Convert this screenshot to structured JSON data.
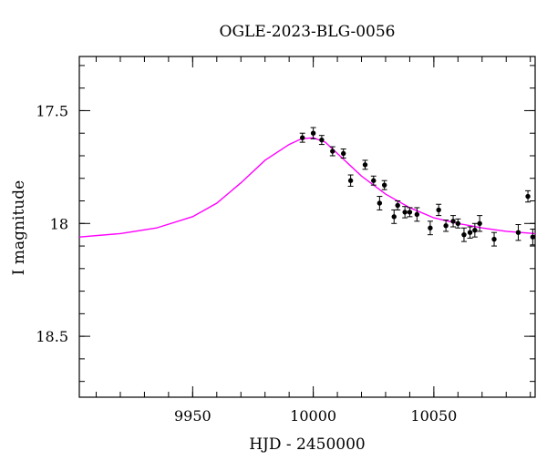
{
  "chart_data": {
    "type": "scatter",
    "title": "OGLE-2023-BLG-0056",
    "xlabel": "HJD - 2450000",
    "ylabel": "I magnitude",
    "xlim": [
      9903,
      10092
    ],
    "ylim": [
      18.77,
      17.26
    ],
    "y_inverted": true,
    "x_ticks": [
      9950,
      10000,
      10050
    ],
    "x_tick_labels": [
      "9950",
      "10000",
      "10050"
    ],
    "y_ticks": [
      17.5,
      18,
      18.5
    ],
    "y_tick_labels": [
      "17.5",
      "18",
      "18.5"
    ],
    "x_minor_step": 10,
    "y_minor_step": 0.1,
    "grid": false,
    "colors": {
      "model": "#ff00ff",
      "points": "#000000"
    },
    "series": [
      {
        "kind": "points_with_errors",
        "points": [
          {
            "x": 9995.5,
            "y": 17.62,
            "err": 0.02
          },
          {
            "x": 10000,
            "y": 17.6,
            "err": 0.025
          },
          {
            "x": 10003.5,
            "y": 17.63,
            "err": 0.02
          },
          {
            "x": 10008,
            "y": 17.68,
            "err": 0.02
          },
          {
            "x": 10012.5,
            "y": 17.69,
            "err": 0.02
          },
          {
            "x": 10015.5,
            "y": 17.81,
            "err": 0.025
          },
          {
            "x": 10021.5,
            "y": 17.74,
            "err": 0.02
          },
          {
            "x": 10025,
            "y": 17.81,
            "err": 0.02
          },
          {
            "x": 10027.5,
            "y": 17.91,
            "err": 0.03
          },
          {
            "x": 10029.5,
            "y": 17.83,
            "err": 0.02
          },
          {
            "x": 10033.5,
            "y": 17.97,
            "err": 0.03
          },
          {
            "x": 10035,
            "y": 17.92,
            "err": 0.02
          },
          {
            "x": 10038,
            "y": 17.95,
            "err": 0.025
          },
          {
            "x": 10040,
            "y": 17.95,
            "err": 0.02
          },
          {
            "x": 10043,
            "y": 17.96,
            "err": 0.03
          },
          {
            "x": 10048.5,
            "y": 18.02,
            "err": 0.03
          },
          {
            "x": 10052,
            "y": 17.94,
            "err": 0.025
          },
          {
            "x": 10055,
            "y": 18.01,
            "err": 0.025
          },
          {
            "x": 10058,
            "y": 17.99,
            "err": 0.025
          },
          {
            "x": 10060,
            "y": 18.0,
            "err": 0.02
          },
          {
            "x": 10062.5,
            "y": 18.05,
            "err": 0.03
          },
          {
            "x": 10065,
            "y": 18.04,
            "err": 0.025
          },
          {
            "x": 10067,
            "y": 18.03,
            "err": 0.03
          },
          {
            "x": 10069,
            "y": 18.0,
            "err": 0.035
          },
          {
            "x": 10075,
            "y": 18.07,
            "err": 0.03
          },
          {
            "x": 10085,
            "y": 18.04,
            "err": 0.035
          },
          {
            "x": 10089,
            "y": 17.88,
            "err": 0.025
          },
          {
            "x": 10091,
            "y": 18.06,
            "err": 0.035
          }
        ]
      },
      {
        "kind": "model_curve",
        "points": [
          {
            "x": 9903,
            "y": 18.06
          },
          {
            "x": 9920,
            "y": 18.045
          },
          {
            "x": 9935,
            "y": 18.02
          },
          {
            "x": 9950,
            "y": 17.97
          },
          {
            "x": 9960,
            "y": 17.91
          },
          {
            "x": 9970,
            "y": 17.82
          },
          {
            "x": 9980,
            "y": 17.72
          },
          {
            "x": 9990,
            "y": 17.65
          },
          {
            "x": 9995,
            "y": 17.625
          },
          {
            "x": 10000,
            "y": 17.62
          },
          {
            "x": 10005,
            "y": 17.64
          },
          {
            "x": 10010,
            "y": 17.69
          },
          {
            "x": 10020,
            "y": 17.79
          },
          {
            "x": 10030,
            "y": 17.87
          },
          {
            "x": 10040,
            "y": 17.93
          },
          {
            "x": 10050,
            "y": 17.975
          },
          {
            "x": 10060,
            "y": 18.0
          },
          {
            "x": 10070,
            "y": 18.02
          },
          {
            "x": 10080,
            "y": 18.035
          },
          {
            "x": 10092,
            "y": 18.045
          }
        ]
      }
    ]
  }
}
